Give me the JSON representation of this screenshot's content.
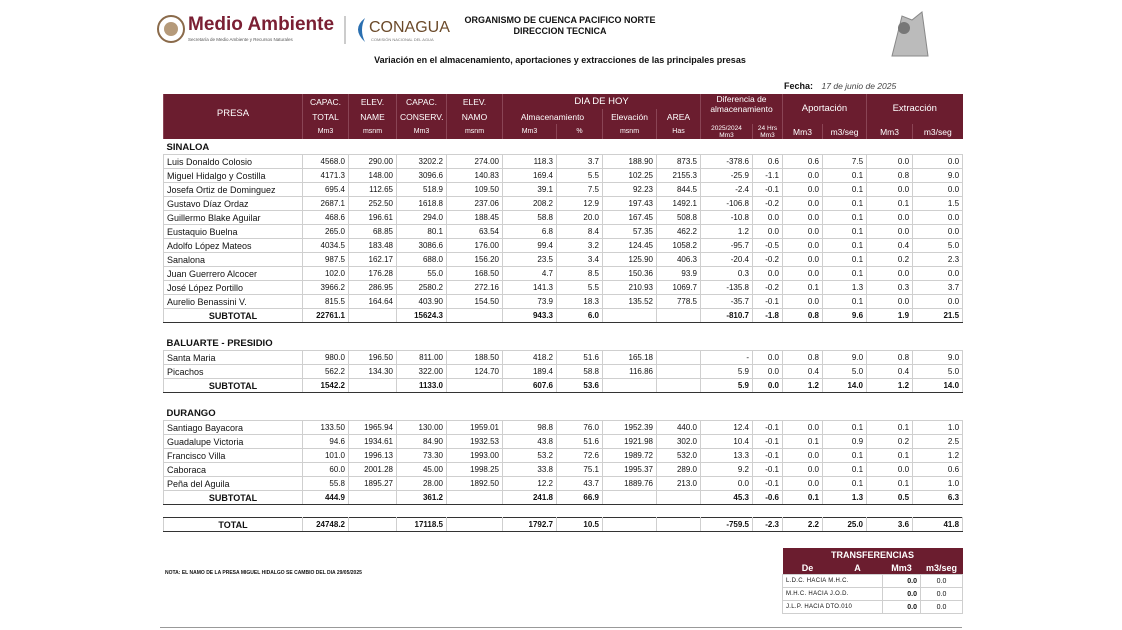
{
  "header": {
    "brand1": "Medio Ambiente",
    "brand1_sub": "Secretaría de Medio Ambiente y Recursos Naturales",
    "brand2": "CONAGUA",
    "brand2_sub": "COMISIÓN NACIONAL DEL AGUA",
    "org": "ORGANISMO DE CUENCA PACIFICO NORTE",
    "dept": "DIRECCION TECNICA",
    "title": "Variación en el almacenamiento, aportaciones y extracciones de las principales presas",
    "date_label": "Fecha:",
    "date": "17 de junio de 2025"
  },
  "table": {
    "columns": {
      "presa": "PRESA",
      "fixed": [
        [
          "CAPAC.",
          "TOTAL",
          "Mm3"
        ],
        [
          "ELEV.",
          "NAME",
          "msnm"
        ],
        [
          "CAPAC.",
          "CONSERV.",
          "Mm3"
        ],
        [
          "ELEV.",
          "NAMO",
          "msnm"
        ]
      ],
      "today": "DIA DE HOY",
      "today_cols": [
        "Almacenamiento",
        "Elevación",
        "AREA"
      ],
      "today_units": [
        "Mm3",
        "%",
        "msnm",
        "Has"
      ],
      "diff": "Diferencia de almacenamiento",
      "diff_cols": [
        "2025/2024",
        "24 Hrs"
      ],
      "diff_units": [
        "Mm3",
        "Mm3"
      ],
      "inflow": "Aportación",
      "inflow_units": [
        "Mm3",
        "m3/seg"
      ],
      "outflow": "Extracción",
      "outflow_units": [
        "Mm3",
        "m3/seg"
      ]
    },
    "sections": [
      {
        "name": "SINALOA",
        "rows": [
          [
            "Luis Donaldo Colosio",
            "4568.0",
            "290.00",
            "3202.2",
            "274.00",
            "118.3",
            "3.7",
            "188.90",
            "873.5",
            "-378.6",
            "0.6",
            "0.6",
            "7.5",
            "0.0",
            "0.0"
          ],
          [
            "Miguel Hidalgo y Costilla",
            "4171.3",
            "148.00",
            "3096.6",
            "140.83",
            "169.4",
            "5.5",
            "102.25",
            "2155.3",
            "-25.9",
            "-1.1",
            "0.0",
            "0.1",
            "0.8",
            "9.0"
          ],
          [
            "Josefa Ortiz de Dominguez",
            "695.4",
            "112.65",
            "518.9",
            "109.50",
            "39.1",
            "7.5",
            "92.23",
            "844.5",
            "-2.4",
            "-0.1",
            "0.0",
            "0.1",
            "0.0",
            "0.0"
          ],
          [
            "Gustavo Díaz Ordaz",
            "2687.1",
            "252.50",
            "1618.8",
            "237.06",
            "208.2",
            "12.9",
            "197.43",
            "1492.1",
            "-106.8",
            "-0.2",
            "0.0",
            "0.1",
            "0.1",
            "1.5"
          ],
          [
            "Guillermo Blake Aguilar",
            "468.6",
            "196.61",
            "294.0",
            "188.45",
            "58.8",
            "20.0",
            "167.45",
            "508.8",
            "-10.8",
            "0.0",
            "0.0",
            "0.1",
            "0.0",
            "0.0"
          ],
          [
            "Eustaquio Buelna",
            "265.0",
            "68.85",
            "80.1",
            "63.54",
            "6.8",
            "8.4",
            "57.35",
            "462.2",
            "1.2",
            "0.0",
            "0.0",
            "0.1",
            "0.0",
            "0.0"
          ],
          [
            "Adolfo López Mateos",
            "4034.5",
            "183.48",
            "3086.6",
            "176.00",
            "99.4",
            "3.2",
            "124.45",
            "1058.2",
            "-95.7",
            "-0.5",
            "0.0",
            "0.1",
            "0.4",
            "5.0"
          ],
          [
            "Sanalona",
            "987.5",
            "162.17",
            "688.0",
            "156.20",
            "23.5",
            "3.4",
            "125.90",
            "406.3",
            "-20.4",
            "-0.2",
            "0.0",
            "0.1",
            "0.2",
            "2.3"
          ],
          [
            "Juan Guerrero Alcocer",
            "102.0",
            "176.28",
            "55.0",
            "168.50",
            "4.7",
            "8.5",
            "150.36",
            "93.9",
            "0.3",
            "0.0",
            "0.0",
            "0.1",
            "0.0",
            "0.0"
          ],
          [
            "José López Portillo",
            "3966.2",
            "286.95",
            "2580.2",
            "272.16",
            "141.3",
            "5.5",
            "210.93",
            "1069.7",
            "-135.8",
            "-0.2",
            "0.1",
            "1.3",
            "0.3",
            "3.7"
          ],
          [
            "Aurelio Benassini V.",
            "815.5",
            "164.64",
            "403.90",
            "154.50",
            "73.9",
            "18.3",
            "135.52",
            "778.5",
            "-35.7",
            "-0.1",
            "0.0",
            "0.1",
            "0.0",
            "0.0"
          ]
        ],
        "subtotal": [
          "SUBTOTAL",
          "22761.1",
          null,
          "15624.3",
          null,
          "943.3",
          "6.0",
          null,
          null,
          "-810.7",
          "-1.8",
          "0.8",
          "9.6",
          "1.9",
          "21.5"
        ]
      },
      {
        "name": "BALUARTE - PRESIDIO",
        "rows": [
          [
            "Santa Maria",
            "980.0",
            "196.50",
            "811.00",
            "188.50",
            "418.2",
            "51.6",
            "165.18",
            null,
            "-",
            "0.0",
            "0.8",
            "9.0",
            "0.8",
            "9.0"
          ],
          [
            "Picachos",
            "562.2",
            "134.30",
            "322.00",
            "124.70",
            "189.4",
            "58.8",
            "116.86",
            null,
            "5.9",
            "0.0",
            "0.4",
            "5.0",
            "0.4",
            "5.0"
          ]
        ],
        "subtotal": [
          "SUBTOTAL",
          "1542.2",
          null,
          "1133.0",
          null,
          "607.6",
          "53.6",
          null,
          null,
          "5.9",
          "0.0",
          "1.2",
          "14.0",
          "1.2",
          "14.0"
        ]
      },
      {
        "name": "DURANGO",
        "rows": [
          [
            "Santiago Bayacora",
            "133.50",
            "1965.94",
            "130.00",
            "1959.01",
            "98.8",
            "76.0",
            "1952.39",
            "440.0",
            "12.4",
            "-0.1",
            "0.0",
            "0.1",
            "0.1",
            "1.0"
          ],
          [
            "Guadalupe Victoria",
            "94.6",
            "1934.61",
            "84.90",
            "1932.53",
            "43.8",
            "51.6",
            "1921.98",
            "302.0",
            "10.4",
            "-0.1",
            "0.1",
            "0.9",
            "0.2",
            "2.5"
          ],
          [
            "Francisco Villa",
            "101.0",
            "1996.13",
            "73.30",
            "1993.00",
            "53.2",
            "72.6",
            "1989.72",
            "532.0",
            "13.3",
            "-0.1",
            "0.0",
            "0.1",
            "0.1",
            "1.2"
          ],
          [
            "Caboraca",
            "60.0",
            "2001.28",
            "45.00",
            "1998.25",
            "33.8",
            "75.1",
            "1995.37",
            "289.0",
            "9.2",
            "-0.1",
            "0.0",
            "0.1",
            "0.0",
            "0.6"
          ],
          [
            "Peña del Aguila",
            "55.8",
            "1895.27",
            "28.00",
            "1892.50",
            "12.2",
            "43.7",
            "1889.76",
            "213.0",
            "0.0",
            "-0.1",
            "0.0",
            "0.1",
            "0.1",
            "1.0"
          ]
        ],
        "subtotal": [
          "SUBTOTAL",
          "444.9",
          null,
          "361.2",
          null,
          "241.8",
          "66.9",
          null,
          null,
          "45.3",
          "-0.6",
          "0.1",
          "1.3",
          "0.5",
          "6.3"
        ]
      }
    ],
    "total": [
      "TOTAL",
      "24748.2",
      null,
      "17118.5",
      null,
      "1792.7",
      "10.5",
      null,
      null,
      "-759.5",
      "-2.3",
      "2.2",
      "25.0",
      "3.6",
      "41.8"
    ]
  },
  "note": "NOTA: EL NAMO DE LA PRESA MIGUEL HIDALGO SE CAMBIO DEL DIA 29/05/2025",
  "transfers": {
    "title": "TRANSFERENCIAS",
    "columns": [
      "De",
      "A",
      "Mm3",
      "m3/seg"
    ],
    "rows": [
      [
        "L.D.C.   HACIA   M.H.C.",
        "0.0",
        "0.0"
      ],
      [
        "M.H.C.   HACIA   J.O.D.",
        "0.0",
        "0.0"
      ],
      [
        "J.L.P. HACIA DTO.010",
        "0.0",
        "0.0"
      ]
    ]
  }
}
